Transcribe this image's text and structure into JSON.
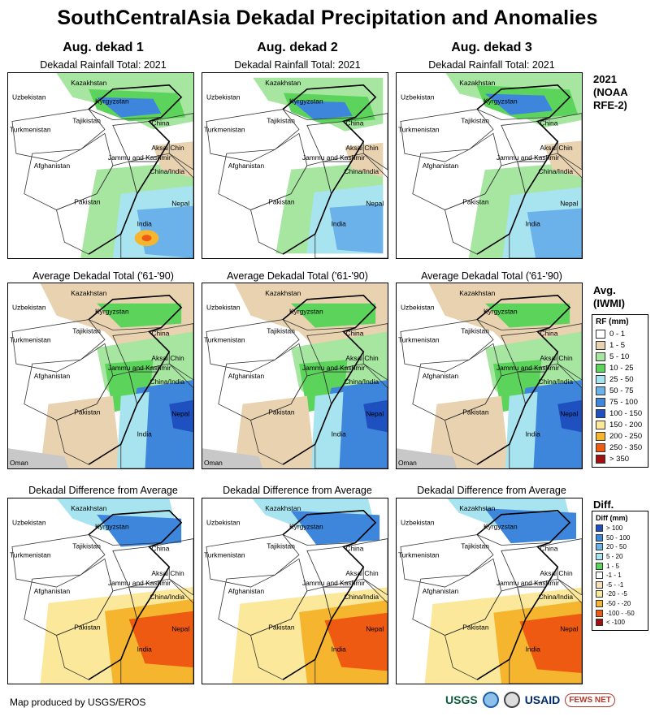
{
  "title": "SouthCentralAsia Dekadal Precipitation and Anomalies",
  "columns": [
    {
      "heading": "Aug. dekad 1"
    },
    {
      "heading": "Aug. dekad 2"
    },
    {
      "heading": "Aug. dekad 3"
    }
  ],
  "rows": [
    {
      "subtitle": "Dekadal Rainfall Total: 2021"
    },
    {
      "subtitle": "Average Dekadal Total ('61-'90)"
    },
    {
      "subtitle": "Dekadal Difference from Average"
    }
  ],
  "row_labels": {
    "row1": [
      "2021",
      "(NOAA",
      "RFE-2)"
    ],
    "row2": [
      "Avg.",
      "(IWMI)"
    ],
    "row3": [
      "Diff."
    ]
  },
  "map_labels": {
    "kazakhstan": "Kazakhstan",
    "uzbekistan": "Uzbekistan",
    "kyrgyzstan": "Kyrgyzstan",
    "tajikistan": "Tajikistan",
    "china": "China",
    "turkmenistan": "Turkmenistan",
    "aksai_chin": "Aksai Chin",
    "jammu_kashmir": "Jammu and Kashmir",
    "china_india": "China/India",
    "afghanistan": "Afghanistan",
    "pakistan": "Pakistan",
    "nepal": "Nepal",
    "india": "India",
    "oman": "Oman"
  },
  "legend_rf": {
    "title": "RF (mm)",
    "items": [
      {
        "label": "0 - 1",
        "color": "#ffffff"
      },
      {
        "label": "1 - 5",
        "color": "#e8d2b0"
      },
      {
        "label": "5 - 10",
        "color": "#a6e6a0"
      },
      {
        "label": "10 - 25",
        "color": "#5cd45c"
      },
      {
        "label": "25 - 50",
        "color": "#a8e4f0"
      },
      {
        "label": "50 - 75",
        "color": "#6cb2ea"
      },
      {
        "label": "75 - 100",
        "color": "#3d86dc"
      },
      {
        "label": "100 - 150",
        "color": "#1f50c0"
      },
      {
        "label": "150 - 200",
        "color": "#fbe89a"
      },
      {
        "label": "200 - 250",
        "color": "#f5b52e"
      },
      {
        "label": "250 - 350",
        "color": "#ee5a12"
      },
      {
        "label": "> 350",
        "color": "#a01010"
      }
    ]
  },
  "legend_diff": {
    "title": "Diff (mm)",
    "items": [
      {
        "label": "> 100",
        "color": "#1f50c0"
      },
      {
        "label": "50 - 100",
        "color": "#3d86dc"
      },
      {
        "label": "20 - 50",
        "color": "#6cb2ea"
      },
      {
        "label": "5 - 20",
        "color": "#a8e4f0"
      },
      {
        "label": "1 - 5",
        "color": "#5cd45c"
      },
      {
        "label": "-1 - 1",
        "color": "#ffffff"
      },
      {
        "label": "-5 - -1",
        "color": "#f6dfb8"
      },
      {
        "label": "-20 - -5",
        "color": "#fbe89a"
      },
      {
        "label": "-50 - -20",
        "color": "#f5b52e"
      },
      {
        "label": "-100 - -50",
        "color": "#ee5a12"
      },
      {
        "label": "< -100",
        "color": "#a01010"
      }
    ]
  },
  "footer": "Map produced by USGS/EROS",
  "logos": {
    "usgs": "USGS",
    "usaid": "USAID",
    "fews": "FEWS NET"
  }
}
